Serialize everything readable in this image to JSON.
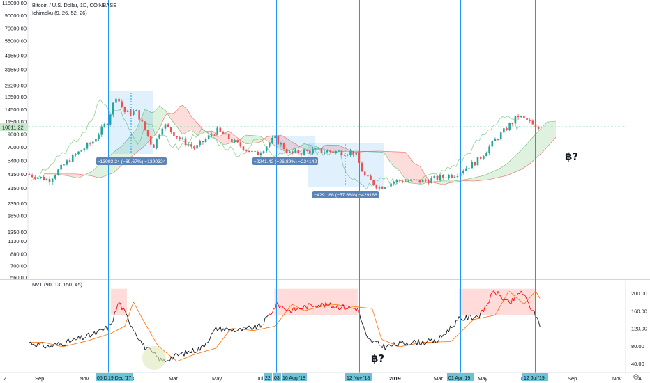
{
  "header": {
    "symbol_title": "Bitcoin / U.S. Dollar, 1D, COINBASE",
    "indicator_ichimoku": "Ichimoku (9, 26, 52, 26)",
    "indicator_nvt": "NVT (90, 13, 150, 45)"
  },
  "price_axis": {
    "ticks": [
      "115000.00",
      "90000.00",
      "70000.00",
      "55000.00",
      "41550.00",
      "31550.00",
      "23200.00",
      "18500.00",
      "14500.00",
      "11500.00",
      "9000.00",
      "7000.00",
      "5400.00",
      "4150.00",
      "3150.00",
      "2350.00",
      "1850.00",
      "1350.00",
      "1130.00",
      "880.00",
      "700.00",
      "560.00"
    ],
    "tick_values": [
      115000,
      90000,
      70000,
      55000,
      41550,
      31550,
      23200,
      18500,
      14500,
      11500,
      9000,
      7000,
      5400,
      4150,
      3150,
      2350,
      1850,
      1350,
      1130,
      880,
      700,
      560
    ],
    "current_price": "10011.22",
    "current_value": 10011.22,
    "scale": "log"
  },
  "nvt_axis": {
    "ticks": [
      "200.00",
      "160.00",
      "120.00",
      "80.00",
      "40.00"
    ],
    "tick_values": [
      200,
      160,
      120,
      80,
      40
    ]
  },
  "time_axis": {
    "labels": [
      "Sep",
      "Nov",
      "Mar",
      "May",
      "Jul",
      "2019",
      "Mar",
      "May",
      "Jul",
      "Sep",
      "Nov"
    ],
    "highlighted_dates": [
      "05 D",
      "19 Dec '17",
      "22",
      "03",
      "16 Aug '18",
      "12 Nov '18",
      "01 Apr '19",
      "12 Jul '19"
    ],
    "partial_label": "8"
  },
  "toolbar": {
    "left_button": "Z",
    "right_button": "A",
    "settings_icon": "gear-icon"
  },
  "annotations": {
    "bitcoin_question_main": "฿?",
    "bitcoin_question_nvt": "฿?",
    "measure_1": "−13903.24 (−69.67%) −1390324",
    "measure_2": "−2241.42 (−26.89%) −224142",
    "measure_3": "−4291.86 (−57.68%) −429186"
  },
  "colors": {
    "up_candle": "#26a69a",
    "down_candle": "#ef5350",
    "vertical_lines": "#2196f3",
    "measure_box": "#2196f3",
    "measure_label": "#5b84b9",
    "nvt_line": "#131722",
    "nvt_signal": "#ff6d00",
    "nvt_high": "#ff0000",
    "cloud_up": "#4caf50",
    "cloud_down": "#f44336",
    "date_tag": "#6cc3d6"
  },
  "chart_data": [
    {
      "type": "candlestick",
      "title": "Bitcoin / U.S. Dollar, 1D, COINBASE",
      "scale": "log",
      "ylim": [
        560,
        115000
      ],
      "anchors": [
        {
          "x": "2017-08-15",
          "y": 4150
        },
        {
          "x": "2017-09-15",
          "y": 3700
        },
        {
          "x": "2017-10-15",
          "y": 5600
        },
        {
          "x": "2017-11-15",
          "y": 7800
        },
        {
          "x": "2017-12-05",
          "y": 11500
        },
        {
          "x": "2017-12-17",
          "y": 19000
        },
        {
          "x": "2017-12-30",
          "y": 13500
        },
        {
          "x": "2018-01-15",
          "y": 13800
        },
        {
          "x": "2018-02-06",
          "y": 6900
        },
        {
          "x": "2018-02-20",
          "y": 11000
        },
        {
          "x": "2018-03-15",
          "y": 8200
        },
        {
          "x": "2018-04-05",
          "y": 6800
        },
        {
          "x": "2018-05-05",
          "y": 9700
        },
        {
          "x": "2018-06-01",
          "y": 7500
        },
        {
          "x": "2018-06-29",
          "y": 6000
        },
        {
          "x": "2018-07-24",
          "y": 8300
        },
        {
          "x": "2018-08-14",
          "y": 6200
        },
        {
          "x": "2018-09-15",
          "y": 6500
        },
        {
          "x": "2018-10-15",
          "y": 6400
        },
        {
          "x": "2018-11-12",
          "y": 6300
        },
        {
          "x": "2018-11-25",
          "y": 4000
        },
        {
          "x": "2018-12-15",
          "y": 3200
        },
        {
          "x": "2019-01-10",
          "y": 3650
        },
        {
          "x": "2019-02-15",
          "y": 3600
        },
        {
          "x": "2019-04-01",
          "y": 4150
        },
        {
          "x": "2019-05-01",
          "y": 5400
        },
        {
          "x": "2019-05-25",
          "y": 8000
        },
        {
          "x": "2019-06-26",
          "y": 12800
        },
        {
          "x": "2019-07-12",
          "y": 11300
        },
        {
          "x": "2019-07-20",
          "y": 10011
        }
      ]
    },
    {
      "type": "line",
      "title": "NVT (90, 13, 150, 45)",
      "ylim": [
        30,
        215
      ],
      "series": [
        {
          "values": [
            {
              "x": "2017-08-15",
              "y": 88
            },
            {
              "x": "2017-09-10",
              "y": 78
            },
            {
              "x": "2017-10-15",
              "y": 92
            },
            {
              "x": "2017-11-15",
              "y": 108
            },
            {
              "x": "2017-12-05",
              "y": 125
            },
            {
              "x": "2017-12-17",
              "y": 180
            },
            {
              "x": "2017-12-30",
              "y": 140
            },
            {
              "x": "2018-01-20",
              "y": 80
            },
            {
              "x": "2018-02-15",
              "y": 45
            },
            {
              "x": "2018-03-10",
              "y": 60
            },
            {
              "x": "2018-04-10",
              "y": 75
            },
            {
              "x": "2018-05-01",
              "y": 120
            },
            {
              "x": "2018-06-01",
              "y": 115
            },
            {
              "x": "2018-07-01",
              "y": 125
            },
            {
              "x": "2018-07-24",
              "y": 175
            },
            {
              "x": "2018-08-10",
              "y": 160
            },
            {
              "x": "2018-09-15",
              "y": 175
            },
            {
              "x": "2018-10-15",
              "y": 170
            },
            {
              "x": "2018-11-12",
              "y": 165
            },
            {
              "x": "2018-11-25",
              "y": 95
            },
            {
              "x": "2018-12-20",
              "y": 78
            },
            {
              "x": "2019-01-20",
              "y": 88
            },
            {
              "x": "2019-03-01",
              "y": 90
            },
            {
              "x": "2019-04-01",
              "y": 140
            },
            {
              "x": "2019-05-01",
              "y": 150
            },
            {
              "x": "2019-05-20",
              "y": 205
            },
            {
              "x": "2019-06-10",
              "y": 175
            },
            {
              "x": "2019-06-26",
              "y": 205
            },
            {
              "x": "2019-07-12",
              "y": 160
            },
            {
              "x": "2019-07-22",
              "y": 130
            }
          ]
        }
      ]
    }
  ]
}
